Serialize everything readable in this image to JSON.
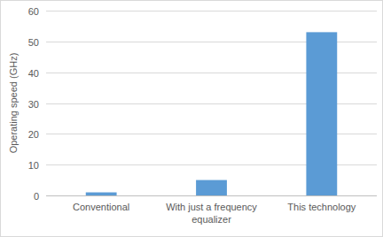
{
  "chart_data": {
    "type": "bar",
    "y_label": "Operating speed (GHz)",
    "categories": [
      "Conventional",
      "With just a frequency equalizer",
      "This technology"
    ],
    "values": [
      1,
      5,
      53
    ],
    "color": "#5b9bd5",
    "ylim": [
      0,
      60
    ],
    "yticks": [
      0,
      10,
      20,
      30,
      40,
      50,
      60
    ],
    "grid": true
  }
}
